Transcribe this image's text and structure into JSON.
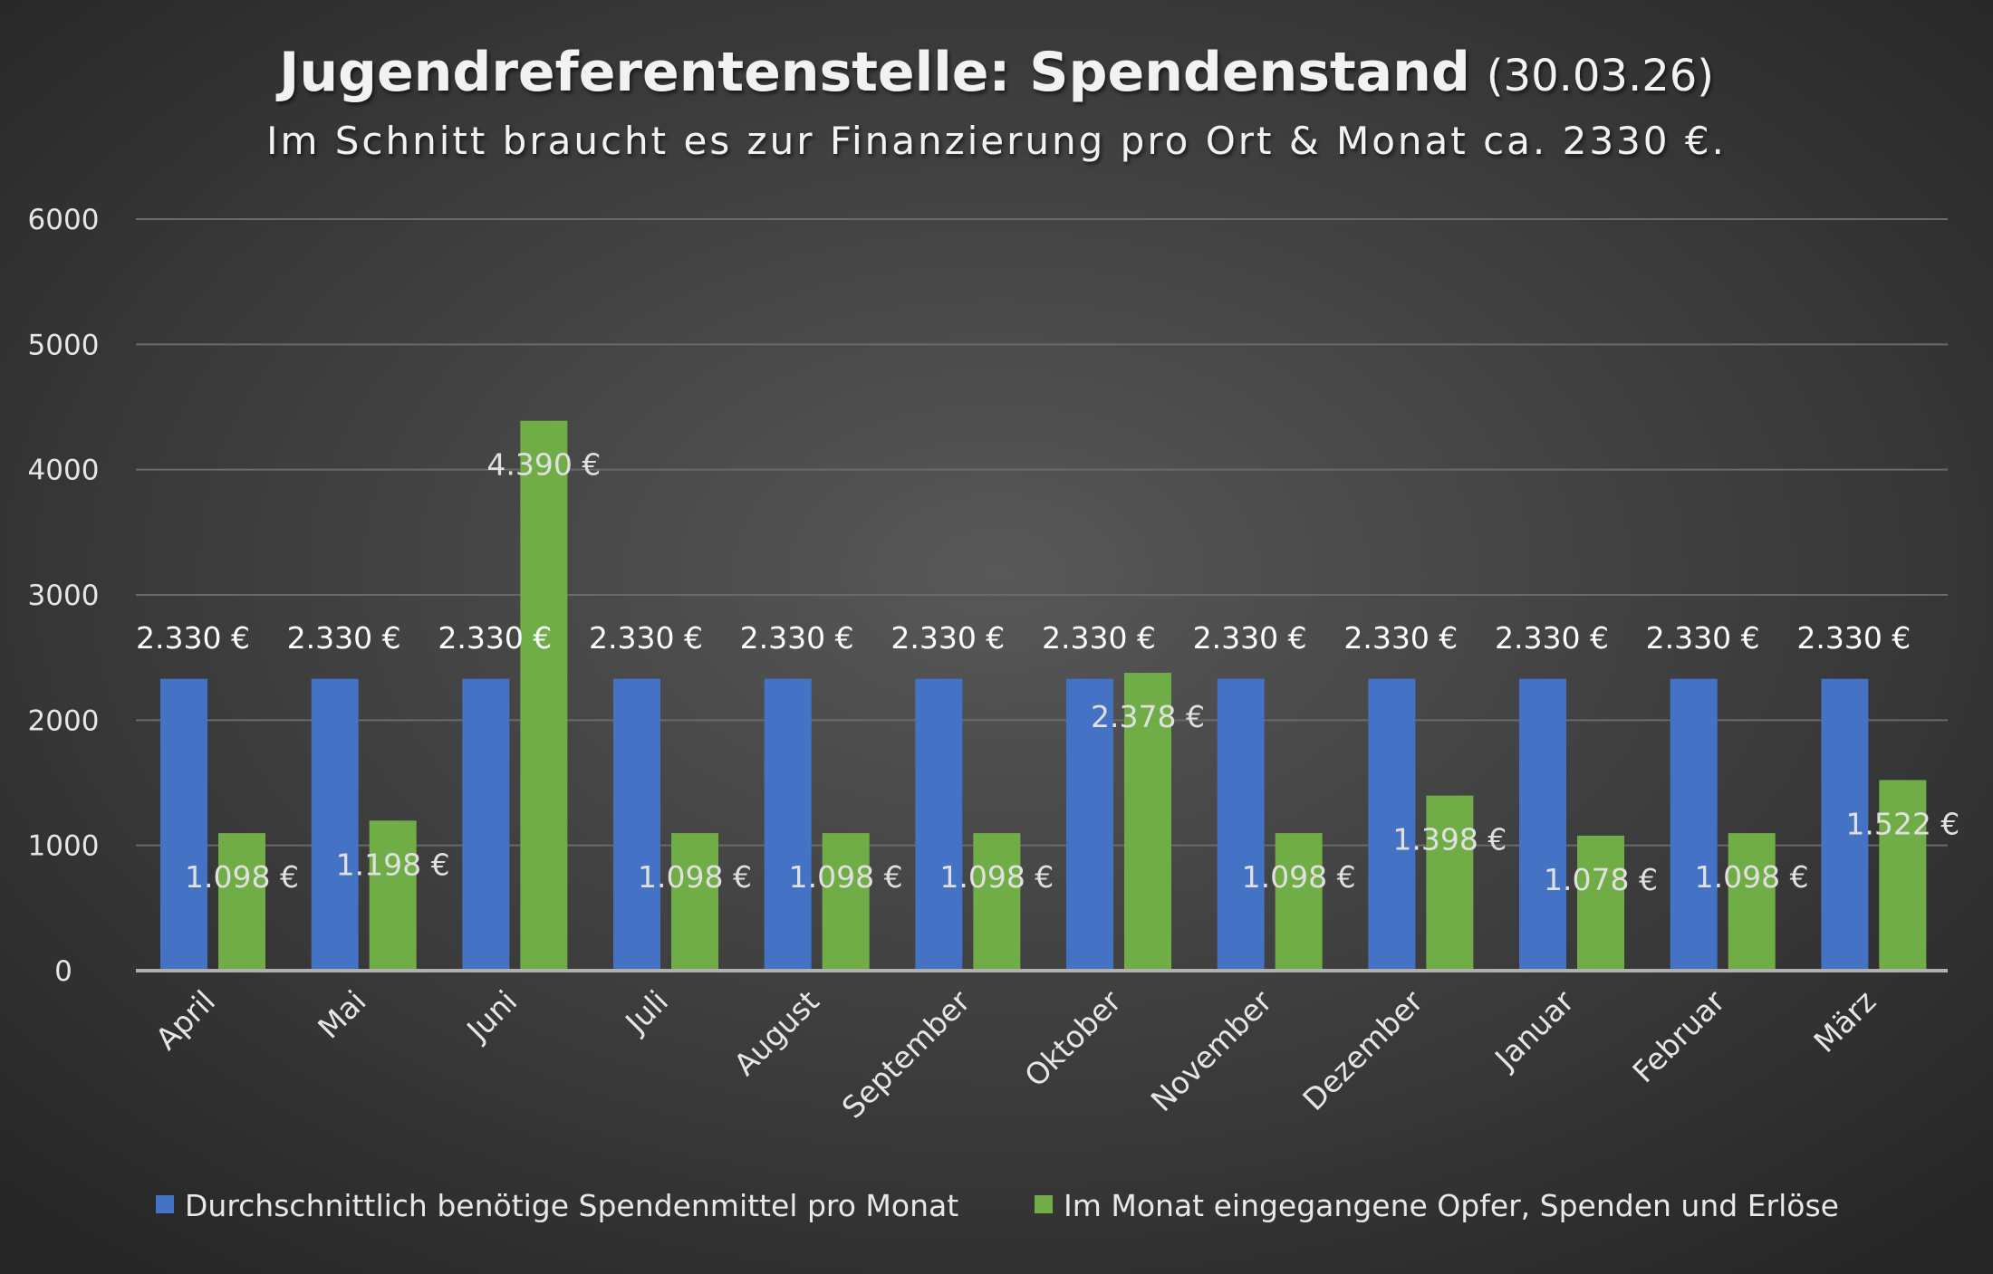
{
  "chart_data": {
    "type": "bar",
    "title": "Jugendreferentenstelle: Spendenstand",
    "title_date": "(30.03.26)",
    "subtitle": "Im Schnitt braucht es zur Finanzierung pro Ort & Monat ca. 2330 €.",
    "xlabel": "",
    "ylabel": "",
    "ylim": [
      0,
      6000
    ],
    "yticks": [
      0,
      1000,
      2000,
      3000,
      4000,
      5000,
      6000
    ],
    "grid": true,
    "legend_position": "bottom",
    "categories": [
      "April",
      "Mai",
      "Juni",
      "Juli",
      "August",
      "September",
      "Oktober",
      "November",
      "Dezember",
      "Januar",
      "Februar",
      "März"
    ],
    "series": [
      {
        "name": "Durchschnittlich benötige Spendenmittel pro Monat",
        "color": "#4472C4",
        "values": [
          2330,
          2330,
          2330,
          2330,
          2330,
          2330,
          2330,
          2330,
          2330,
          2330,
          2330,
          2330
        ],
        "labels": [
          "2.330 €",
          "2.330 €",
          "2.330 €",
          "2.330 €",
          "2.330 €",
          "2.330 €",
          "2.330 €",
          "2.330 €",
          "2.330 €",
          "2.330 €",
          "2.330 €",
          "2.330 €"
        ]
      },
      {
        "name": "Im Monat eingegangene Opfer, Spenden und Erlöse",
        "color": "#70AD47",
        "values": [
          1098,
          1198,
          4390,
          1098,
          1098,
          1098,
          2378,
          1098,
          1398,
          1078,
          1098,
          1522
        ],
        "labels": [
          "1.098 €",
          "1.198 €",
          "4.390 €",
          "1.098 €",
          "1.098 €",
          "1.098 €",
          "2.378 €",
          "1.098 €",
          "1.398 €",
          "1.078 €",
          "1.098 €",
          "1.522 €"
        ]
      }
    ]
  }
}
